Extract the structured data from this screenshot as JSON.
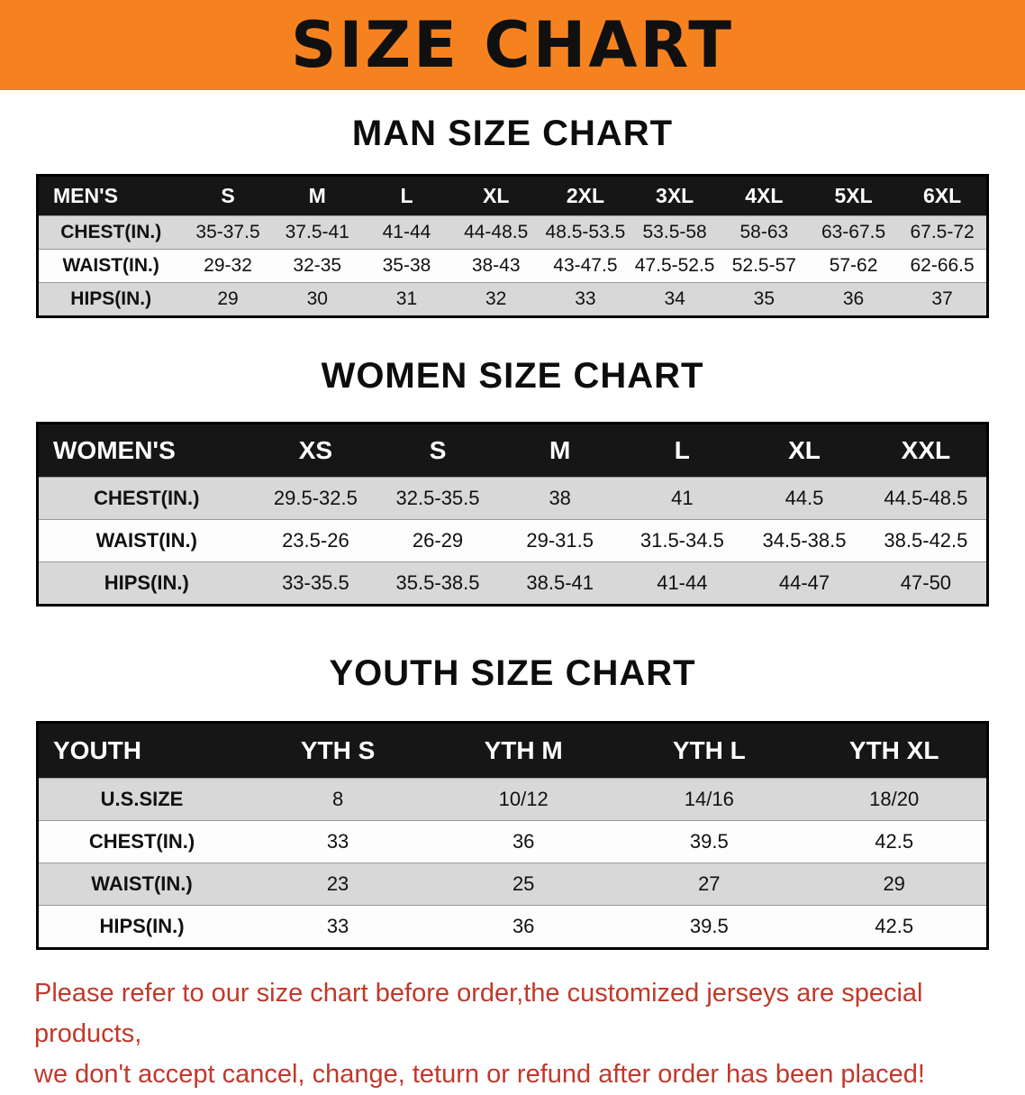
{
  "banner": {
    "title": "SIZE CHART"
  },
  "sections": {
    "men": {
      "heading": "MAN SIZE CHART",
      "table": {
        "header": [
          "MEN'S",
          "S",
          "M",
          "L",
          "XL",
          "2XL",
          "3XL",
          "4XL",
          "5XL",
          "6XL"
        ],
        "rows": [
          [
            "CHEST(IN.)",
            "35-37.5",
            "37.5-41",
            "41-44",
            "44-48.5",
            "48.5-53.5",
            "53.5-58",
            "58-63",
            "63-67.5",
            "67.5-72"
          ],
          [
            "WAIST(IN.)",
            "29-32",
            "32-35",
            "35-38",
            "38-43",
            "43-47.5",
            "47.5-52.5",
            "52.5-57",
            "57-62",
            "62-66.5"
          ],
          [
            "HIPS(IN.)",
            "29",
            "30",
            "31",
            "32",
            "33",
            "34",
            "35",
            "36",
            "37"
          ]
        ]
      }
    },
    "women": {
      "heading": "WOMEN SIZE CHART",
      "table": {
        "header": [
          "WOMEN'S",
          "XS",
          "S",
          "M",
          "L",
          "XL",
          "XXL"
        ],
        "rows": [
          [
            "CHEST(IN.)",
            "29.5-32.5",
            "32.5-35.5",
            "38",
            "41",
            "44.5",
            "44.5-48.5"
          ],
          [
            "WAIST(IN.)",
            "23.5-26",
            "26-29",
            "29-31.5",
            "31.5-34.5",
            "34.5-38.5",
            "38.5-42.5"
          ],
          [
            "HIPS(IN.)",
            "33-35.5",
            "35.5-38.5",
            "38.5-41",
            "41-44",
            "44-47",
            "47-50"
          ]
        ]
      }
    },
    "youth": {
      "heading": "YOUTH SIZE CHART",
      "table": {
        "header": [
          "YOUTH",
          "YTH S",
          "YTH M",
          "YTH L",
          "YTH XL"
        ],
        "rows": [
          [
            "U.S.SIZE",
            "8",
            "10/12",
            "14/16",
            "18/20"
          ],
          [
            "CHEST(IN.)",
            "33",
            "36",
            "39.5",
            "42.5"
          ],
          [
            "WAIST(IN.)",
            "23",
            "25",
            "27",
            "29"
          ],
          [
            "HIPS(IN.)",
            "33",
            "36",
            "39.5",
            "42.5"
          ]
        ]
      }
    }
  },
  "disclaimer": {
    "lines": [
      "Please refer to our size chart before order,the customized jerseys are special products,",
      "we don't accept cancel, change, teturn or refund after order has been placed!"
    ]
  },
  "colors": {
    "banner_bg": "#f6821f",
    "banner_text": "#101010",
    "table_header_bg": "#161616",
    "row_alt_bg": "#d8d8d8",
    "disclaimer_text": "#c0392b"
  }
}
